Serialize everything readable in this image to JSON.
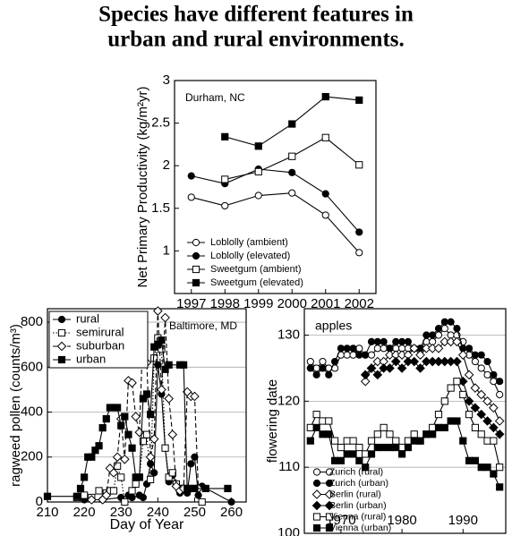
{
  "header": {
    "title_lines": [
      "Species have different features in",
      "urban and rural environments."
    ]
  },
  "chart_data": [
    {
      "type": "line",
      "annotation": "Durham, NC",
      "annotation_corner": "upper-left",
      "y_label": "Net Primary Productivity (kg/m²yr)",
      "x": [
        1997,
        1998,
        1999,
        2000,
        2001,
        2002
      ],
      "xlim": [
        1996.5,
        2002.5
      ],
      "xticks": [
        1997,
        1998,
        1999,
        2000,
        2001,
        2002
      ],
      "ylim": [
        0.5,
        3
      ],
      "yticks": [
        1,
        1.5,
        2,
        2.5,
        3
      ],
      "grid": false,
      "legend": "lower-left",
      "legend_frame": false,
      "series": [
        {
          "name": "Loblolly (ambient)",
          "color": "#000000",
          "marker": "circle",
          "filled": false,
          "dash": "solid",
          "values": [
            1.63,
            1.53,
            1.65,
            1.68,
            1.42,
            0.98
          ]
        },
        {
          "name": "Loblolly (elevated)",
          "color": "#000000",
          "marker": "circle",
          "filled": true,
          "dash": "solid",
          "values": [
            1.88,
            1.79,
            1.96,
            1.92,
            1.67,
            1.22
          ]
        },
        {
          "name": "Sweetgum (ambient)",
          "color": "#000000",
          "marker": "square",
          "filled": false,
          "dash": "solid",
          "values": [
            null,
            1.84,
            1.93,
            2.11,
            2.33,
            2.01
          ]
        },
        {
          "name": "Sweetgum (elevated)",
          "color": "#000000",
          "marker": "square",
          "filled": true,
          "dash": "solid",
          "values": [
            null,
            2.34,
            2.23,
            2.49,
            2.81,
            2.77
          ]
        }
      ]
    },
    {
      "type": "line",
      "annotation": "Baltimore, MD",
      "annotation_corner": "upper-right",
      "x_label": "Day of Year",
      "y_label": "ragweed pollen (counts/m³)",
      "xlim": [
        210,
        264
      ],
      "xticks": [
        210,
        220,
        230,
        240,
        250,
        260
      ],
      "ylim": [
        0,
        860
      ],
      "yticks": [
        0,
        200,
        400,
        600,
        800
      ],
      "grid": true,
      "legend": "upper-left",
      "legend_frame": true,
      "series": [
        {
          "name": "rural",
          "color": "#000000",
          "marker": "circle",
          "filled": true,
          "dash": "solid",
          "x": [
            220,
            225,
            230,
            232,
            233,
            235,
            236,
            237,
            238,
            239,
            240,
            241,
            242,
            243,
            244,
            245,
            246,
            247,
            248,
            249,
            250,
            251,
            252,
            260
          ],
          "values": [
            10,
            10,
            20,
            30,
            20,
            30,
            20,
            80,
            170,
            130,
            610,
            480,
            240,
            90,
            120,
            80,
            40,
            60,
            40,
            170,
            200,
            30,
            70,
            0
          ]
        },
        {
          "name": "semirural",
          "color": "#000000",
          "marker": "square",
          "filled": false,
          "dash": "dotted",
          "x": [
            218,
            220,
            222,
            224,
            226,
            227,
            228,
            229,
            230,
            231,
            233,
            234,
            235,
            236,
            237,
            238,
            239,
            240,
            241,
            242,
            243,
            244,
            245,
            246,
            247,
            248,
            250,
            252
          ],
          "values": [
            20,
            30,
            20,
            50,
            40,
            50,
            50,
            160,
            110,
            0,
            50,
            80,
            110,
            270,
            300,
            100,
            640,
            730,
            680,
            240,
            110,
            130,
            80,
            60,
            60,
            60,
            60,
            0
          ]
        },
        {
          "name": "suburban",
          "color": "#000000",
          "marker": "diamond",
          "filled": false,
          "dash": "dashed",
          "x": [
            222,
            225,
            226,
            227,
            228,
            229,
            230,
            231,
            232,
            233,
            234,
            235,
            236,
            237,
            238,
            239,
            240,
            241,
            242,
            243,
            244,
            245,
            246,
            247,
            248,
            249,
            250,
            251
          ],
          "values": [
            10,
            10,
            30,
            150,
            130,
            200,
            370,
            190,
            540,
            530,
            380,
            310,
            780,
            620,
            200,
            280,
            850,
            500,
            820,
            460,
            300,
            70,
            50,
            60,
            490,
            470,
            470,
            60
          ]
        },
        {
          "name": "urban",
          "color": "#000000",
          "marker": "square",
          "filled": true,
          "dash": "solid",
          "x": [
            210,
            218,
            219,
            220,
            221,
            222,
            223,
            224,
            225,
            226,
            227,
            228,
            229,
            230,
            231,
            232,
            233,
            234,
            235,
            236,
            237,
            238,
            239,
            240,
            241,
            242,
            243,
            246,
            247,
            248,
            250,
            253,
            259
          ],
          "values": [
            25,
            25,
            60,
            110,
            200,
            200,
            230,
            250,
            330,
            370,
            420,
            420,
            420,
            340,
            380,
            300,
            240,
            110,
            110,
            460,
            480,
            390,
            690,
            700,
            720,
            590,
            610,
            610,
            610,
            60,
            60,
            60,
            60
          ]
        }
      ]
    },
    {
      "type": "line",
      "annotation": "apples",
      "annotation_corner": "upper-left",
      "y_label": "flowering date",
      "x": [
        1965,
        1966,
        1967,
        1968,
        1969,
        1970,
        1971,
        1972,
        1973,
        1974,
        1975,
        1976,
        1977,
        1978,
        1979,
        1980,
        1981,
        1982,
        1983,
        1984,
        1985,
        1986,
        1987,
        1988,
        1989,
        1990,
        1991,
        1992,
        1993,
        1994,
        1995,
        1996
      ],
      "xlim": [
        1964,
        1997
      ],
      "xticks": [
        1970,
        1980,
        1990
      ],
      "ylim": [
        100,
        134
      ],
      "yticks": [
        100,
        110,
        120,
        130
      ],
      "grid": true,
      "legend": "lower-left",
      "legend_frame": false,
      "series": [
        {
          "name": "Zurich (rural)",
          "color": "#000000",
          "marker": "circle",
          "filled": false,
          "dash": "solid",
          "values": [
            126,
            125,
            126,
            125,
            125,
            127,
            127,
            127,
            128,
            127,
            127,
            128,
            128,
            128,
            128,
            128,
            128,
            128,
            128,
            129,
            129,
            130,
            131,
            130,
            130,
            129,
            127,
            126,
            125,
            124,
            123,
            121
          ]
        },
        {
          "name": "Zurich (urban)",
          "color": "#000000",
          "marker": "circle",
          "filled": true,
          "dash": "solid",
          "values": [
            125,
            124,
            125,
            124,
            126,
            128,
            128,
            128,
            127,
            127,
            129,
            129,
            129,
            128,
            129,
            129,
            129,
            128,
            128,
            130,
            130,
            131,
            132,
            132,
            131,
            128,
            128,
            127,
            127,
            126,
            124,
            123
          ]
        },
        {
          "name": "Berlin (rural)",
          "color": "#000000",
          "marker": "diamond",
          "filled": false,
          "dash": "solid",
          "values": [
            null,
            null,
            null,
            null,
            null,
            null,
            null,
            null,
            null,
            123,
            125,
            126,
            126,
            127,
            127,
            127,
            127,
            128,
            127,
            128,
            128,
            128,
            129,
            129,
            129,
            127,
            124,
            122,
            121,
            120,
            119,
            117
          ]
        },
        {
          "name": "Berlin (urban)",
          "color": "#000000",
          "marker": "diamond",
          "filled": true,
          "dash": "solid",
          "values": [
            null,
            null,
            null,
            null,
            null,
            null,
            null,
            null,
            null,
            124,
            125,
            124,
            125,
            125,
            126,
            125,
            126,
            126,
            125,
            126,
            126,
            126,
            126,
            126,
            126,
            123,
            120,
            119,
            118,
            117,
            116,
            115
          ]
        },
        {
          "name": "Vienna (rural)",
          "color": "#000000",
          "marker": "square",
          "filled": false,
          "dash": "solid",
          "values": [
            116,
            118,
            117,
            117,
            114,
            113,
            114,
            114,
            113,
            112,
            114,
            115,
            116,
            115,
            114,
            113,
            114,
            115,
            114,
            115,
            116,
            118,
            120,
            122,
            123,
            121,
            118,
            116,
            115,
            114,
            114,
            110
          ]
        },
        {
          "name": "Vienna (urban)",
          "color": "#000000",
          "marker": "square",
          "filled": true,
          "dash": "solid",
          "values": [
            114,
            116,
            115,
            115,
            111,
            111,
            112,
            112,
            111,
            110,
            112,
            113,
            113,
            113,
            113,
            112,
            113,
            114,
            114,
            115,
            115,
            116,
            116,
            117,
            117,
            114,
            111,
            111,
            110,
            110,
            109,
            107
          ]
        }
      ]
    }
  ]
}
